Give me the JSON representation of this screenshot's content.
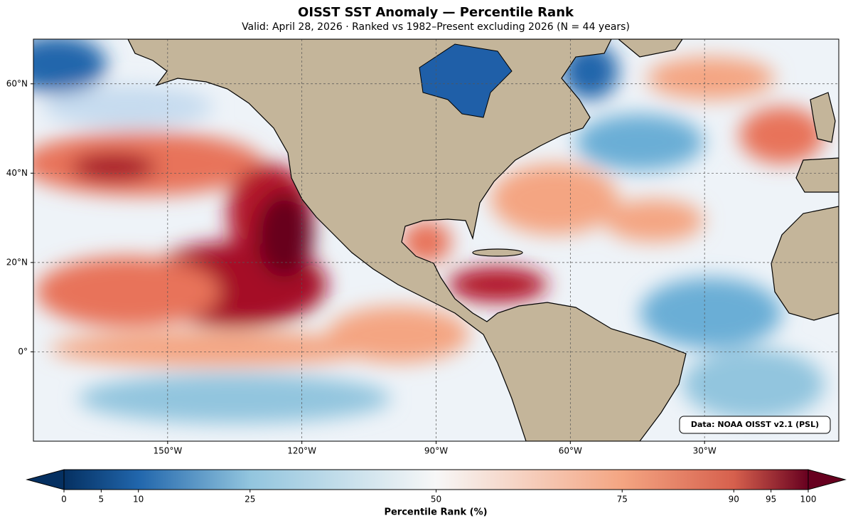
{
  "map": {
    "title": "OISST SST Anomaly — Percentile Rank",
    "subtitle": "Valid: April 28, 2026  ·  Ranked vs 1982–Present excluding 2026  (N = 44 years)",
    "xlim": [
      -180,
      0
    ],
    "ylim": [
      -20,
      70
    ],
    "lon_ticks": [
      {
        "value": -150,
        "label": "150°W"
      },
      {
        "value": -120,
        "label": "120°W"
      },
      {
        "value": -90,
        "label": "90°W"
      },
      {
        "value": -60,
        "label": "60°W"
      },
      {
        "value": -30,
        "label": "30°W"
      }
    ],
    "lat_ticks": [
      {
        "value": 60,
        "label": "60°N"
      },
      {
        "value": 40,
        "label": "40°N"
      },
      {
        "value": 20,
        "label": "20°N"
      },
      {
        "value": 0,
        "label": "0°"
      }
    ],
    "source": "Data: NOAA OISST v2.1 (PSL)"
  },
  "colorbar": {
    "label": "Percentile Rank (%)",
    "lim": [
      0,
      100
    ],
    "ticks": [
      0,
      5,
      10,
      25,
      50,
      75,
      90,
      95,
      100
    ]
  }
}
